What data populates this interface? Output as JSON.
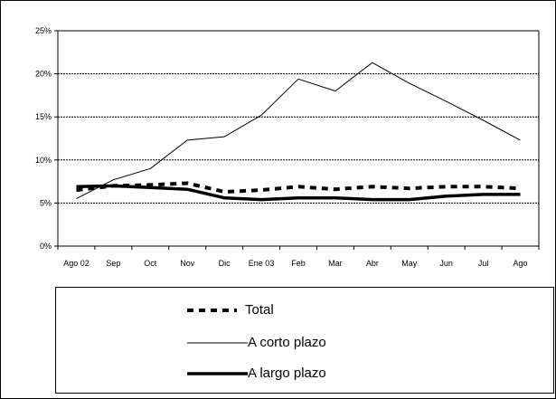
{
  "chart_data": {
    "type": "line",
    "categories": [
      "Ago 02",
      "Sep",
      "Oct",
      "Nov",
      "Dic",
      "Ene 03",
      "Feb",
      "Mar",
      "Abr",
      "May",
      "Jun",
      "Jul",
      "Ago"
    ],
    "ylim": [
      0,
      25
    ],
    "yticks": [
      "0%",
      "5%",
      "10%",
      "15%",
      "20%",
      "25%"
    ],
    "ytick_values": [
      0,
      5,
      10,
      15,
      20,
      25
    ],
    "grid": true,
    "legend_position": "bottom",
    "series": [
      {
        "name": "Total",
        "style": "dashed-bold",
        "color": "#000000",
        "values": [
          6.5,
          7.0,
          7.1,
          7.3,
          6.3,
          6.5,
          6.9,
          6.6,
          6.9,
          6.7,
          6.9,
          6.9,
          6.7
        ]
      },
      {
        "name": "A corto plazo",
        "style": "thin",
        "color": "#000000",
        "values": [
          5.5,
          7.7,
          9.0,
          12.3,
          12.7,
          15.2,
          19.4,
          18.0,
          21.3,
          18.9,
          16.8,
          14.6,
          12.3
        ]
      },
      {
        "name": "A largo plazo",
        "style": "bold",
        "color": "#000000",
        "values": [
          6.9,
          7.0,
          6.8,
          6.6,
          5.6,
          5.4,
          5.6,
          5.6,
          5.4,
          5.4,
          5.8,
          6.0,
          6.0
        ]
      }
    ]
  }
}
